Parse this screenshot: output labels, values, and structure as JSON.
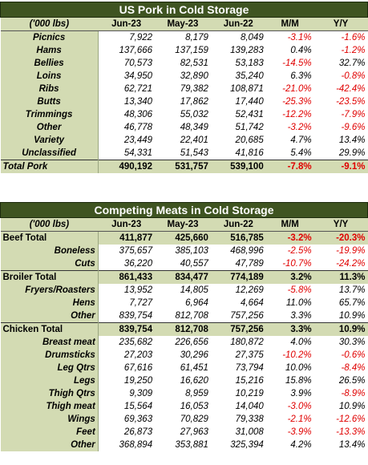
{
  "pork": {
    "title": "US Pork in Cold Storage",
    "headers": [
      "('000 lbs)",
      "Jun-23",
      "May-23",
      "Jun-22",
      "M/M",
      "Y/Y"
    ],
    "rows": [
      {
        "label": "Picnics",
        "jun23": "7,922",
        "may23": "8,179",
        "jun22": "8,049",
        "mm": "-3.1%",
        "yy": "-1.6%"
      },
      {
        "label": "Hams",
        "jun23": "137,666",
        "may23": "137,159",
        "jun22": "139,283",
        "mm": "0.4%",
        "yy": "-1.2%"
      },
      {
        "label": "Bellies",
        "jun23": "70,573",
        "may23": "82,531",
        "jun22": "53,183",
        "mm": "-14.5%",
        "yy": "32.7%"
      },
      {
        "label": "Loins",
        "jun23": "34,950",
        "may23": "32,890",
        "jun22": "35,240",
        "mm": "6.3%",
        "yy": "-0.8%"
      },
      {
        "label": "Ribs",
        "jun23": "62,721",
        "may23": "79,382",
        "jun22": "108,871",
        "mm": "-21.0%",
        "yy": "-42.4%"
      },
      {
        "label": "Butts",
        "jun23": "13,340",
        "may23": "17,862",
        "jun22": "17,440",
        "mm": "-25.3%",
        "yy": "-23.5%"
      },
      {
        "label": "Trimmings",
        "jun23": "48,306",
        "may23": "55,032",
        "jun22": "52,431",
        "mm": "-12.2%",
        "yy": "-7.9%"
      },
      {
        "label": "Other",
        "jun23": "46,778",
        "may23": "48,349",
        "jun22": "51,742",
        "mm": "-3.2%",
        "yy": "-9.6%"
      },
      {
        "label": "Variety",
        "jun23": "23,449",
        "may23": "22,401",
        "jun22": "20,685",
        "mm": "4.7%",
        "yy": "13.4%"
      },
      {
        "label": "Unclassified",
        "jun23": "54,331",
        "may23": "51,543",
        "jun22": "41,816",
        "mm": "5.4%",
        "yy": "29.9%"
      }
    ],
    "total": {
      "label": "Total Pork",
      "jun23": "490,192",
      "may23": "531,757",
      "jun22": "539,100",
      "mm": "-7.8%",
      "yy": "-9.1%"
    }
  },
  "meats": {
    "title": "Competing Meats in Cold Storage",
    "headers": [
      "('000 lbs)",
      "Jun-23",
      "May-23",
      "Jun-22",
      "M/M",
      "Y/Y"
    ],
    "rows": [
      {
        "label": "Beef Total",
        "kind": "group",
        "jun23": "411,877",
        "may23": "425,660",
        "jun22": "516,785",
        "mm": "-3.2%",
        "yy": "-20.3%"
      },
      {
        "label": "Boneless",
        "kind": "sub",
        "jun23": "375,657",
        "may23": "385,103",
        "jun22": "468,996",
        "mm": "-2.5%",
        "yy": "-19.9%"
      },
      {
        "label": "Cuts",
        "kind": "sub",
        "jun23": "36,220",
        "may23": "40,557",
        "jun22": "47,789",
        "mm": "-10.7%",
        "yy": "-24.2%"
      },
      {
        "label": "Broiler Total",
        "kind": "group",
        "jun23": "861,433",
        "may23": "834,477",
        "jun22": "774,189",
        "mm": "3.2%",
        "yy": "11.3%"
      },
      {
        "label": "Fryers/Roasters",
        "kind": "sub",
        "jun23": "13,952",
        "may23": "14,805",
        "jun22": "12,269",
        "mm": "-5.8%",
        "yy": "13.7%"
      },
      {
        "label": "Hens",
        "kind": "sub",
        "jun23": "7,727",
        "may23": "6,964",
        "jun22": "4,664",
        "mm": "11.0%",
        "yy": "65.7%"
      },
      {
        "label": "Other",
        "kind": "sub",
        "jun23": "839,754",
        "may23": "812,708",
        "jun22": "757,256",
        "mm": "3.3%",
        "yy": "10.9%"
      },
      {
        "label": "Chicken Total",
        "kind": "group",
        "jun23": "839,754",
        "may23": "812,708",
        "jun22": "757,256",
        "mm": "3.3%",
        "yy": "10.9%"
      },
      {
        "label": "Breast meat",
        "kind": "sub",
        "jun23": "235,682",
        "may23": "226,656",
        "jun22": "180,872",
        "mm": "4.0%",
        "yy": "30.3%"
      },
      {
        "label": "Drumsticks",
        "kind": "sub",
        "jun23": "27,203",
        "may23": "30,296",
        "jun22": "27,375",
        "mm": "-10.2%",
        "yy": "-0.6%"
      },
      {
        "label": "Leg Qtrs",
        "kind": "sub",
        "jun23": "67,616",
        "may23": "61,451",
        "jun22": "73,794",
        "mm": "10.0%",
        "yy": "-8.4%"
      },
      {
        "label": "Legs",
        "kind": "sub",
        "jun23": "19,250",
        "may23": "16,620",
        "jun22": "15,216",
        "mm": "15.8%",
        "yy": "26.5%"
      },
      {
        "label": "Thigh Qtrs",
        "kind": "sub",
        "jun23": "9,309",
        "may23": "8,959",
        "jun22": "10,219",
        "mm": "3.9%",
        "yy": "-8.9%"
      },
      {
        "label": "Thigh meat",
        "kind": "sub",
        "jun23": "15,564",
        "may23": "16,053",
        "jun22": "14,040",
        "mm": "-3.0%",
        "yy": "10.9%"
      },
      {
        "label": "Wings",
        "kind": "sub",
        "jun23": "69,363",
        "may23": "70,829",
        "jun22": "79,338",
        "mm": "-2.1%",
        "yy": "-12.6%"
      },
      {
        "label": "Feet",
        "kind": "sub",
        "jun23": "26,873",
        "may23": "27,963",
        "jun22": "31,008",
        "mm": "-3.9%",
        "yy": "-13.3%"
      },
      {
        "label": "Other",
        "kind": "sub",
        "jun23": "368,894",
        "may23": "353,881",
        "jun22": "325,394",
        "mm": "4.2%",
        "yy": "13.4%"
      }
    ]
  },
  "colors": {
    "header_bg": "#3f5421",
    "label_bg": "#d3dbb3",
    "negative": "#e00000"
  }
}
